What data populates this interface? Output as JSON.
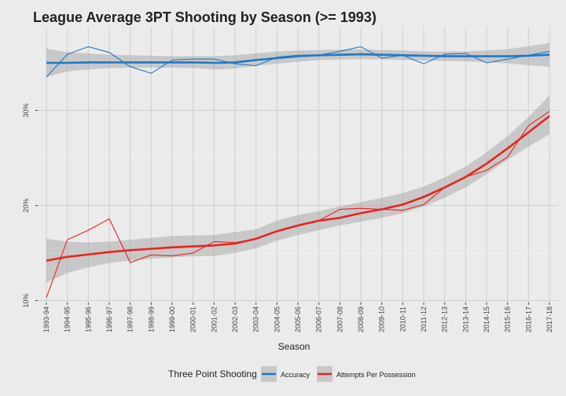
{
  "chart_data": {
    "type": "line",
    "title": "League Average 3PT Shooting by Season (>= 1993)",
    "xlabel": "Season",
    "ylabel": "",
    "categories": [
      "1993-94",
      "1994-95",
      "1995-96",
      "1996-97",
      "1997-98",
      "1998-99",
      "1999-00",
      "2000-01",
      "2001-02",
      "2002-03",
      "2003-04",
      "2004-05",
      "2005-06",
      "2006-07",
      "2007-08",
      "2008-09",
      "2009-10",
      "2010-11",
      "2011-12",
      "2012-13",
      "2013-14",
      "2014-15",
      "2015-16",
      "2016-17",
      "2017-18"
    ],
    "y_ticks": [
      10,
      20,
      30
    ],
    "y_tick_labels": [
      "10%",
      "20%",
      "30%"
    ],
    "ylim": [
      9.8,
      38.8
    ],
    "grid": true,
    "legend": {
      "title": "Three Point Shooting",
      "position": "bottom"
    },
    "series": [
      {
        "name": "Accuracy",
        "color": "#1f78c8",
        "values": [
          33.5,
          35.9,
          36.7,
          36.1,
          34.6,
          33.9,
          35.3,
          35.4,
          35.4,
          34.9,
          34.7,
          35.6,
          35.8,
          35.8,
          36.2,
          36.7,
          35.5,
          35.8,
          34.9,
          35.9,
          36.0,
          35.0,
          35.4,
          35.8,
          36.2
        ],
        "trend": [
          35.0,
          35.0,
          35.05,
          35.05,
          35.05,
          35.05,
          35.05,
          35.05,
          35.0,
          35.05,
          35.3,
          35.5,
          35.7,
          35.8,
          35.85,
          35.9,
          35.85,
          35.8,
          35.75,
          35.7,
          35.7,
          35.7,
          35.7,
          35.75,
          35.85
        ],
        "band": [
          [
            33.5,
            36.5
          ],
          [
            34.1,
            36.1
          ],
          [
            34.3,
            36.0
          ],
          [
            34.45,
            35.85
          ],
          [
            34.5,
            35.8
          ],
          [
            34.5,
            35.75
          ],
          [
            34.5,
            35.7
          ],
          [
            34.45,
            35.7
          ],
          [
            34.3,
            35.7
          ],
          [
            34.4,
            35.8
          ],
          [
            34.7,
            36.0
          ],
          [
            34.9,
            36.2
          ],
          [
            35.1,
            36.3
          ],
          [
            35.3,
            36.35
          ],
          [
            35.35,
            36.4
          ],
          [
            35.4,
            36.4
          ],
          [
            35.35,
            36.35
          ],
          [
            35.3,
            36.3
          ],
          [
            35.25,
            36.2
          ],
          [
            35.2,
            36.2
          ],
          [
            35.15,
            36.2
          ],
          [
            35.05,
            36.3
          ],
          [
            34.95,
            36.45
          ],
          [
            34.75,
            36.75
          ],
          [
            34.6,
            37.1
          ]
        ]
      },
      {
        "name": "Attempts Per Possession",
        "color": "#e8231f",
        "values": [
          10.3,
          16.4,
          17.4,
          18.6,
          14.0,
          14.8,
          14.7,
          15.0,
          16.2,
          16.1,
          16.5,
          17.3,
          17.9,
          18.4,
          19.6,
          19.7,
          19.6,
          19.5,
          20.1,
          21.9,
          23.0,
          23.7,
          25.1,
          28.4,
          29.9
        ],
        "trend": [
          14.2,
          14.6,
          14.85,
          15.1,
          15.3,
          15.45,
          15.6,
          15.7,
          15.8,
          16.0,
          16.5,
          17.3,
          17.9,
          18.4,
          18.7,
          19.2,
          19.6,
          20.1,
          20.9,
          21.9,
          23.0,
          24.4,
          26.0,
          27.7,
          29.4
        ],
        "band": [
          [
            11.9,
            16.5
          ],
          [
            12.9,
            16.2
          ],
          [
            13.5,
            16.1
          ],
          [
            13.95,
            16.2
          ],
          [
            14.2,
            16.4
          ],
          [
            14.4,
            16.6
          ],
          [
            14.55,
            16.8
          ],
          [
            14.65,
            16.85
          ],
          [
            14.7,
            16.9
          ],
          [
            15.0,
            17.2
          ],
          [
            15.5,
            17.5
          ],
          [
            16.3,
            18.4
          ],
          [
            16.9,
            19.0
          ],
          [
            17.4,
            19.4
          ],
          [
            17.9,
            19.9
          ],
          [
            18.3,
            20.35
          ],
          [
            18.7,
            20.8
          ],
          [
            19.2,
            21.3
          ],
          [
            19.9,
            22.0
          ],
          [
            20.8,
            22.95
          ],
          [
            21.9,
            24.1
          ],
          [
            23.3,
            25.6
          ],
          [
            24.8,
            27.3
          ],
          [
            26.2,
            29.3
          ],
          [
            27.5,
            31.6
          ]
        ]
      }
    ]
  }
}
